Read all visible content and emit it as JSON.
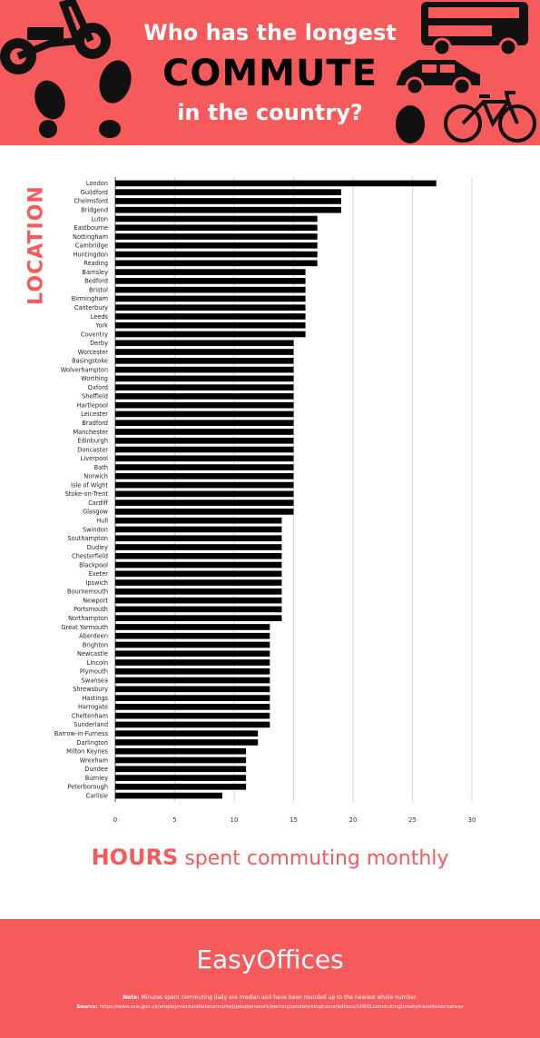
{
  "header": {
    "line1": "Who has the longest",
    "line2": "COMMUTE",
    "line3": "in the country?",
    "decorations": [
      "scooter-icon",
      "footprint-icon",
      "bus-icon",
      "car-icon",
      "bicycle-icon"
    ]
  },
  "colors": {
    "accent": "#f65a5b",
    "bar": "#000000",
    "grid": "#cccccc"
  },
  "chart_data": {
    "type": "bar",
    "orientation": "horizontal",
    "xlabel_bold": "HOURS",
    "xlabel_rest": "spent commuting monthly",
    "ylabel": "LOCATION",
    "xlim": [
      0,
      30
    ],
    "xticks": [
      0,
      5,
      10,
      15,
      20,
      25,
      30
    ],
    "grid": true,
    "categories": [
      "London",
      "Guildford",
      "Chelmsford",
      "Bridgend",
      "Luton",
      "Eastbourne",
      "Nottingham",
      "Cambridge",
      "Huntingdon",
      "Reading",
      "Barnsley",
      "Bedford",
      "Bristol",
      "Birmingham",
      "Canterbury",
      "Leeds",
      "York",
      "Coventry",
      "Derby",
      "Worcester",
      "Basingstoke",
      "Wolverhampton",
      "Worthing",
      "Oxford",
      "Sheffield",
      "Hartlepool",
      "Leicester",
      "Bradford",
      "Manchester",
      "Edinburgh",
      "Doncaster",
      "Liverpool",
      "Bath",
      "Norwich",
      "Isle of Wight",
      "Stoke-on-Trent",
      "Cardiff",
      "Glasgow",
      "Hull",
      "Swindon",
      "Southampton",
      "Dudley",
      "Chesterfield",
      "Blackpool",
      "Exeter",
      "Ipswich",
      "Bournemouth",
      "Newport",
      "Portsmouth",
      "Northampton",
      "Great Yarmouth",
      "Aberdeen",
      "Brighton",
      "Newcastle",
      "Lincoln",
      "Plymouth",
      "Swansea",
      "Shrewsbury",
      "Hastings",
      "Harrogate",
      "Cheltenham",
      "Sunderland",
      "Barrow-in-Furness",
      "Darlington",
      "Milton Keynes",
      "Wrexham",
      "Dundee",
      "Burnley",
      "Peterborough",
      "Carlisle"
    ],
    "values": [
      27,
      19,
      19,
      19,
      17,
      17,
      17,
      17,
      17,
      17,
      16,
      16,
      16,
      16,
      16,
      16,
      16,
      16,
      15,
      15,
      15,
      15,
      15,
      15,
      15,
      15,
      15,
      15,
      15,
      15,
      15,
      15,
      15,
      15,
      15,
      15,
      15,
      15,
      14,
      14,
      14,
      14,
      14,
      14,
      14,
      14,
      14,
      14,
      14,
      14,
      13,
      13,
      13,
      13,
      13,
      13,
      13,
      13,
      13,
      13,
      13,
      13,
      12,
      12,
      11,
      11,
      11,
      11,
      11,
      9
    ]
  },
  "footer": {
    "brand": "EasyOffices",
    "note_label": "Note:",
    "note_text": "Minutes spent commuting daily are median and have been rounded up to the nearest whole number.",
    "source_label": "Source:",
    "source_text": "https://www.ons.gov.uk/employmentandlabourmarket/peopleinwork/earningsandworkinghours/adhocs/10601commutingtimebytraveltoworkareas"
  }
}
